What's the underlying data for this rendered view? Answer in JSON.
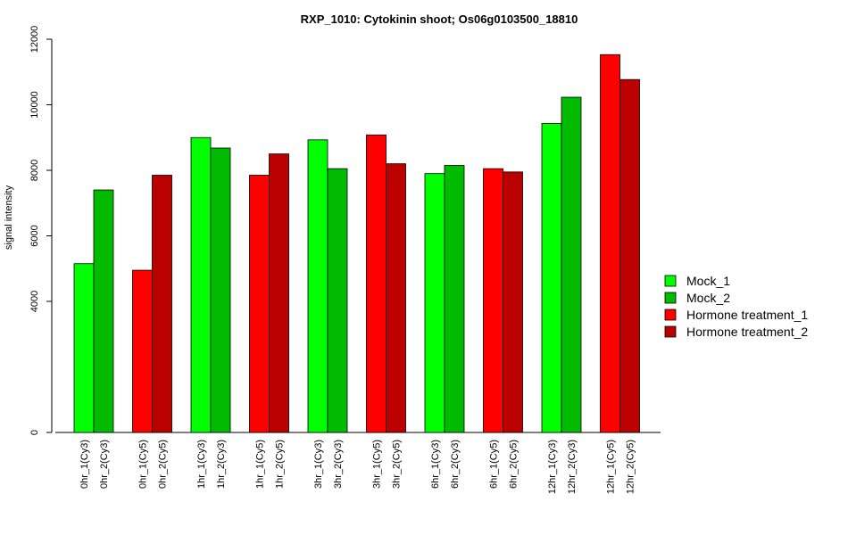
{
  "chart_data": {
    "type": "bar",
    "title": "RXP_1010: Cytokinin shoot; Os06g0103500_18810",
    "ylabel": "signal intensity",
    "xlabel": "",
    "ylim": [
      0,
      12000
    ],
    "y_ticks": [
      0,
      4000,
      6000,
      8000,
      10000,
      12000
    ],
    "y_tick_labels": [
      "0",
      "4000",
      "6000",
      "8000",
      "10000",
      "12000"
    ],
    "grid": false,
    "legend_position": "right",
    "series": [
      {
        "name": "Mock_1",
        "color": "#00ff00"
      },
      {
        "name": "Mock_2",
        "color": "#00bb00"
      },
      {
        "name": "Hormone treatment_1",
        "color": "#ff0000"
      },
      {
        "name": "Hormone treatment_2",
        "color": "#bb0000"
      }
    ],
    "bars": [
      {
        "label": "0hr_1(Cy3)",
        "value": 5150,
        "series": 0
      },
      {
        "label": "0hr_2(Cy3)",
        "value": 7400,
        "series": 1
      },
      {
        "label": "0hr_1(Cy5)",
        "value": 4950,
        "series": 2
      },
      {
        "label": "0hr_2(Cy5)",
        "value": 7850,
        "series": 3
      },
      {
        "label": "1hr_1(Cy3)",
        "value": 9000,
        "series": 0
      },
      {
        "label": "1hr_2(Cy3)",
        "value": 8680,
        "series": 1
      },
      {
        "label": "1hr_1(Cy5)",
        "value": 7850,
        "series": 2
      },
      {
        "label": "1hr_2(Cy5)",
        "value": 8500,
        "series": 3
      },
      {
        "label": "3hr_1(Cy3)",
        "value": 8930,
        "series": 0
      },
      {
        "label": "3hr_2(Cy3)",
        "value": 8050,
        "series": 1
      },
      {
        "label": "3hr_1(Cy5)",
        "value": 9080,
        "series": 2
      },
      {
        "label": "3hr_2(Cy5)",
        "value": 8200,
        "series": 3
      },
      {
        "label": "6hr_1(Cy3)",
        "value": 7900,
        "series": 0
      },
      {
        "label": "6hr_2(Cy3)",
        "value": 8150,
        "series": 1
      },
      {
        "label": "6hr_1(Cy5)",
        "value": 8050,
        "series": 2
      },
      {
        "label": "6hr_2(Cy5)",
        "value": 7950,
        "series": 3
      },
      {
        "label": "12hr_1(Cy3)",
        "value": 9430,
        "series": 0
      },
      {
        "label": "12hr_2(Cy3)",
        "value": 10230,
        "series": 1
      },
      {
        "label": "12hr_1(Cy5)",
        "value": 11530,
        "series": 2
      },
      {
        "label": "12hr_2(Cy5)",
        "value": 10770,
        "series": 3
      }
    ]
  }
}
